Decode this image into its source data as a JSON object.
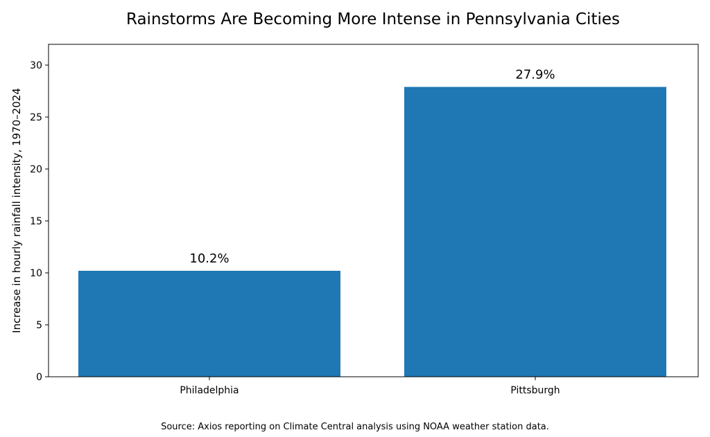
{
  "chart_data": {
    "type": "bar",
    "title": "Rainstorms Are Becoming More Intense in Pennsylvania Cities",
    "xlabel": "",
    "ylabel": "Increase in hourly rainfall intensity, 1970–2024",
    "categories": [
      "Philadelphia",
      "Pittsburgh"
    ],
    "values": [
      10.2,
      27.9
    ],
    "data_labels": [
      "10.2%",
      "27.9%"
    ],
    "ylim": [
      0,
      32
    ],
    "yticks": [
      0,
      5,
      10,
      15,
      20,
      25,
      30
    ],
    "bar_color": "#1f77b4",
    "grid": false,
    "legend": "none"
  },
  "source": "Source: Axios reporting on Climate Central analysis using NOAA weather station data."
}
